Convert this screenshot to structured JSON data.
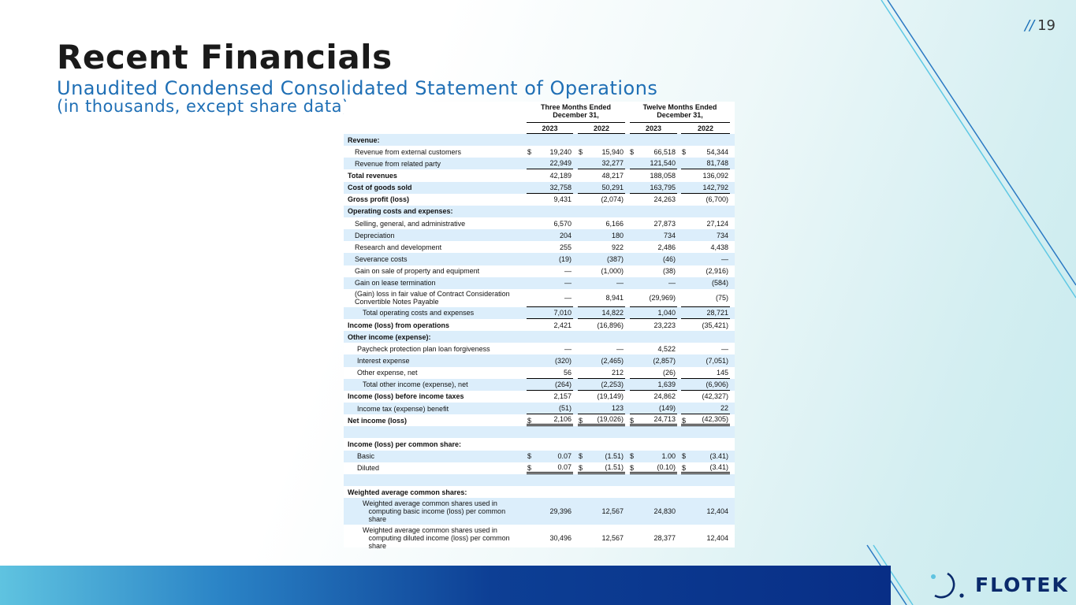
{
  "slide": {
    "page_number": "19",
    "page_prefix": "//",
    "title": "Recent Financials",
    "subtitle": "Unaudited Condensed Consolidated Statement of Operations",
    "subtitle2": "(in thousands, except share data)",
    "logo_text": "FLOTEK"
  },
  "table": {
    "header": {
      "group1": "Three Months Ended December 31,",
      "group2": "Twelve Months Ended December 31,",
      "years": [
        "2023",
        "2022",
        "2023",
        "2022"
      ]
    },
    "rows": [
      {
        "label": "Revenue:",
        "values": [
          "",
          "",
          "",
          ""
        ],
        "bold": true,
        "shade": true,
        "indent": 0
      },
      {
        "label": "Revenue from external customers",
        "values": [
          "19,240",
          "15,940",
          "66,518",
          "54,344"
        ],
        "dollar": [
          true,
          true,
          true,
          true
        ],
        "indent": 1
      },
      {
        "label": "Revenue from related party",
        "values": [
          "22,949",
          "32,277",
          "121,540",
          "81,748"
        ],
        "shade": true,
        "indent": 1,
        "ul": true
      },
      {
        "label": "Total revenues",
        "values": [
          "42,189",
          "48,217",
          "188,058",
          "136,092"
        ],
        "bold": true,
        "indent": 0
      },
      {
        "label": "Cost of goods sold",
        "values": [
          "32,758",
          "50,291",
          "163,795",
          "142,792"
        ],
        "bold": true,
        "shade": true,
        "indent": 0,
        "ul": true
      },
      {
        "label": "Gross profit (loss)",
        "values": [
          "9,431",
          "(2,074)",
          "24,263",
          "(6,700)"
        ],
        "bold": true,
        "indent": 0
      },
      {
        "label": "Operating costs and expenses:",
        "values": [
          "",
          "",
          "",
          ""
        ],
        "bold": true,
        "shade": true,
        "indent": 0
      },
      {
        "label": "Selling, general, and administrative",
        "values": [
          "6,570",
          "6,166",
          "27,873",
          "27,124"
        ],
        "indent": 1
      },
      {
        "label": "Depreciation",
        "values": [
          "204",
          "180",
          "734",
          "734"
        ],
        "shade": true,
        "indent": 1
      },
      {
        "label": "Research and development",
        "values": [
          "255",
          "922",
          "2,486",
          "4,438"
        ],
        "indent": 1
      },
      {
        "label": "Severance costs",
        "values": [
          "(19)",
          "(387)",
          "(46)",
          "—"
        ],
        "shade": true,
        "indent": 1
      },
      {
        "label": "Gain on sale of property and equipment",
        "values": [
          "—",
          "(1,000)",
          "(38)",
          "(2,916)"
        ],
        "indent": 1
      },
      {
        "label": "Gain on lease termination",
        "values": [
          "—",
          "—",
          "—",
          "(584)"
        ],
        "shade": true,
        "indent": 1
      },
      {
        "label": "(Gain) loss in fair value of Contract Consideration\nConvertible Notes Payable",
        "values": [
          "—",
          "8,941",
          "(29,969)",
          "(75)"
        ],
        "indent": 1,
        "tall": true,
        "ul": true
      },
      {
        "label": "Total operating costs and expenses",
        "values": [
          "7,010",
          "14,822",
          "1,040",
          "28,721"
        ],
        "shade": true,
        "indent": 3,
        "ul": true
      },
      {
        "label": "Income (loss) from operations",
        "values": [
          "2,421",
          "(16,896)",
          "23,223",
          "(35,421)"
        ],
        "bold": true,
        "indent": 0
      },
      {
        "label": "Other income (expense):",
        "values": [
          "",
          "",
          "",
          ""
        ],
        "bold": true,
        "shade": true,
        "indent": 0
      },
      {
        "label": "Paycheck protection plan loan forgiveness",
        "values": [
          "—",
          "—",
          "4,522",
          "—"
        ],
        "indent": 2
      },
      {
        "label": "Interest expense",
        "values": [
          "(320)",
          "(2,465)",
          "(2,857)",
          "(7,051)"
        ],
        "shade": true,
        "indent": 2
      },
      {
        "label": "Other expense, net",
        "values": [
          "56",
          "212",
          "(26)",
          "145"
        ],
        "indent": 2,
        "ul": true
      },
      {
        "label": "Total other income (expense), net",
        "values": [
          "(264)",
          "(2,253)",
          "1,639",
          "(6,906)"
        ],
        "shade": true,
        "indent": 3,
        "ul": true
      },
      {
        "label": "Income (loss) before income taxes",
        "values": [
          "2,157",
          "(19,149)",
          "24,862",
          "(42,327)"
        ],
        "bold": true,
        "indent": 0
      },
      {
        "label": "Income tax (expense) benefit",
        "values": [
          "(51)",
          "123",
          "(149)",
          "22"
        ],
        "shade": true,
        "indent": 2,
        "ul": true
      },
      {
        "label": "Net income (loss)",
        "values": [
          "2,106",
          "(19,026)",
          "24,713",
          "(42,305)"
        ],
        "dollar": [
          true,
          true,
          true,
          true
        ],
        "bold": true,
        "indent": 0,
        "dul": true
      },
      {
        "label": "",
        "values": [
          "",
          "",
          "",
          ""
        ],
        "shade": true,
        "indent": 0
      },
      {
        "label": "Income (loss) per common share:",
        "values": [
          "",
          "",
          "",
          ""
        ],
        "bold": true,
        "indent": 0
      },
      {
        "label": "Basic",
        "values": [
          "0.07",
          "(1.51)",
          "1.00",
          "(3.41)"
        ],
        "dollar": [
          true,
          true,
          true,
          true
        ],
        "shade": true,
        "indent": 2
      },
      {
        "label": "Diluted",
        "values": [
          "0.07",
          "(1.51)",
          "(0.10)",
          "(3.41)"
        ],
        "dollar": [
          true,
          true,
          true,
          true
        ],
        "indent": 2,
        "dul": true
      },
      {
        "label": "",
        "values": [
          "",
          "",
          "",
          ""
        ],
        "shade": true,
        "indent": 0
      },
      {
        "label": "Weighted average common shares:",
        "values": [
          "",
          "",
          "",
          ""
        ],
        "bold": true,
        "indent": 0
      },
      {
        "label": "Weighted average common shares used in\n   computing basic income (loss) per common\n   share",
        "values": [
          "29,396",
          "12,567",
          "24,830",
          "12,404"
        ],
        "shade": true,
        "indent": 4,
        "xtall": true
      },
      {
        "label": "Weighted average common shares used in\n   computing diluted income (loss) per common\n   share",
        "values": [
          "30,496",
          "12,567",
          "28,377",
          "12,404"
        ],
        "indent": 4,
        "xtall": true
      }
    ]
  }
}
